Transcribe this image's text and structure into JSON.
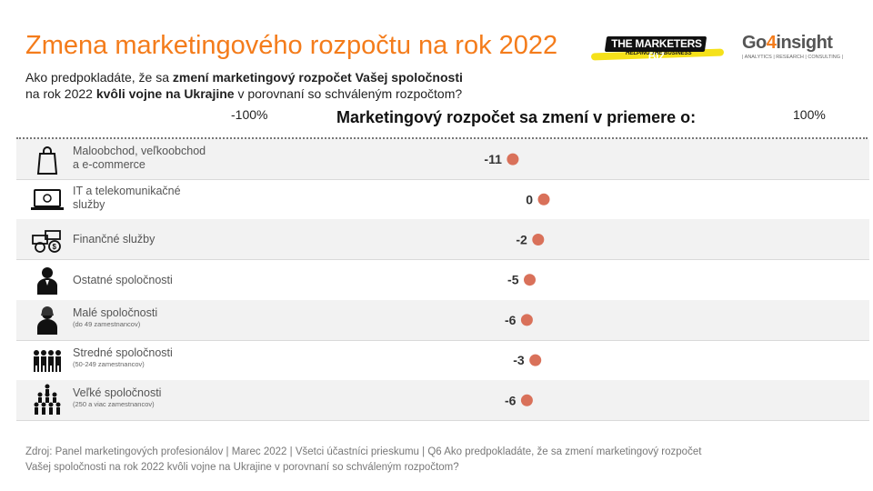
{
  "title": "Zmena marketingového  rozpočtu na rok 2022",
  "subtitle": {
    "line1_pre": "Ako predpokladáte, že sa ",
    "line1_bold": "zmení marketingový rozpočet Vašej spoločnosti",
    "line2_pre": "na rok 2022 ",
    "line2_bold": "kvôli vojne na Ukrajine",
    "line2_post": " v porovnaní  so schváleným  rozpočtom?"
  },
  "logos": {
    "marketers": "THE MARKETERS BIZ",
    "marketers_sub": "HELPING THE BUSINESS",
    "go4_part1": "Go",
    "go4_part2": "4",
    "go4_part3": "insight",
    "go4_tag": "| ANALYTICS | RESEARCH | CONSULTING |"
  },
  "chart_data": {
    "type": "scatter",
    "title": "Marketingový rozpočet sa zmení v priemere o:",
    "xlim": [
      -100,
      100
    ],
    "axis_min_label": "-100%",
    "axis_max_label": "100%",
    "categories": [
      {
        "label": "Maloobchod, veľkoobchod a e-commerce",
        "note": "",
        "value": -11
      },
      {
        "label": "IT a telekomunikačné služby",
        "note": "",
        "value": 0
      },
      {
        "label": "Finančné služby",
        "note": "",
        "value": -2
      },
      {
        "label": "Ostatné spoločnosti",
        "note": "",
        "value": -5
      },
      {
        "label": "Malé spoločnosti",
        "note": "(do 49 zamestnancov)",
        "value": -6
      },
      {
        "label": "Stredné spoločnosti",
        "note": "(50-249 zamestnancov)",
        "value": -3
      },
      {
        "label": "Veľké spoločnosti",
        "note": "(250 a viac zamestnancov)",
        "value": -6
      }
    ],
    "row_label_lines": [
      [
        "Maloobchod, veľkoobchod",
        "a e-commerce"
      ],
      [
        "IT a telekomunikačné",
        "služby"
      ],
      [
        "Finančné služby"
      ],
      [
        "Ostatné spoločnosti"
      ],
      [
        "Malé spoločnosti"
      ],
      [
        "Stredné spoločnosti"
      ],
      [
        "Veľké spoločnosti"
      ]
    ],
    "dot_color": "#d9715a",
    "icons": [
      "shopping-bag-icon",
      "laptop-icon",
      "money-bills-icon",
      "businessman-icon",
      "person-icon",
      "small-team-icon",
      "large-team-icon"
    ]
  },
  "footer": {
    "line1": "Zdroj:  Panel marketingových  profesionálov  | Marec 2022 | Všetci účastníci prieskumu | Q6 Ako predpokladáte,  že sa zmení marketingový  rozpočet",
    "line2": "Vašej spoločnosti na rok 2022 kvôli vojne na Ukrajine  v porovnaní   so schváleným  rozpočtom?"
  },
  "colors": {
    "accent": "#f47c1b",
    "text_gray": "#555555"
  }
}
